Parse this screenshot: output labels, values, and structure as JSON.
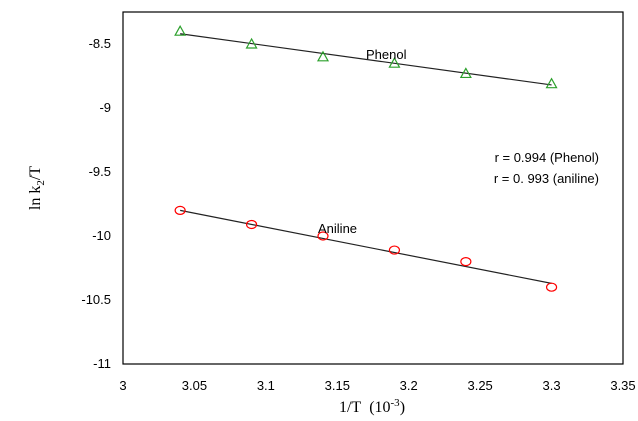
{
  "chart_data": {
    "type": "scatter",
    "xlabel": "1/T",
    "xlabel_unit_base": "(10",
    "xlabel_unit_exp": "-3",
    "xlabel_unit_close": ")",
    "ylabel_prefix": "ln k",
    "ylabel_sub": "2",
    "ylabel_suffix": "/T",
    "xlim": [
      3,
      3.35
    ],
    "ylim": [
      -11,
      -8.2
    ],
    "xticks": [
      3,
      3.05,
      3.1,
      3.15,
      3.2,
      3.25,
      3.3,
      3.35
    ],
    "xtick_labels": [
      "3",
      "3.05",
      "3.1",
      "3.15",
      "3.2",
      "3.25",
      "3.3",
      "3.35"
    ],
    "yticks": [
      -8.5,
      -9,
      -9.5,
      -10,
      -10.5,
      -11
    ],
    "ytick_labels": [
      "-8.5",
      "-9",
      "-9.5",
      "-10",
      "-10.5",
      "-11"
    ],
    "grid": false,
    "series": [
      {
        "name": "Phenol",
        "marker": "triangle",
        "color": "#2ca02c",
        "x": [
          3.04,
          3.09,
          3.14,
          3.19,
          3.24,
          3.3
        ],
        "y": [
          -8.4,
          -8.5,
          -8.6,
          -8.65,
          -8.73,
          -8.81
        ],
        "fit": {
          "x": [
            3.04,
            3.3
          ],
          "y": [
            -8.42,
            -8.82
          ]
        }
      },
      {
        "name": "Aniline",
        "marker": "circle",
        "color": "#ff0000",
        "x": [
          3.04,
          3.09,
          3.14,
          3.19,
          3.24,
          3.3
        ],
        "y": [
          -9.8,
          -9.91,
          -10.0,
          -10.11,
          -10.2,
          -10.4
        ],
        "fit": {
          "x": [
            3.04,
            3.3
          ],
          "y": [
            -9.8,
            -10.37
          ]
        }
      }
    ],
    "annotations": [
      "r = 0.994 (Phenol)",
      "r = 0. 993 (aniline)"
    ]
  }
}
